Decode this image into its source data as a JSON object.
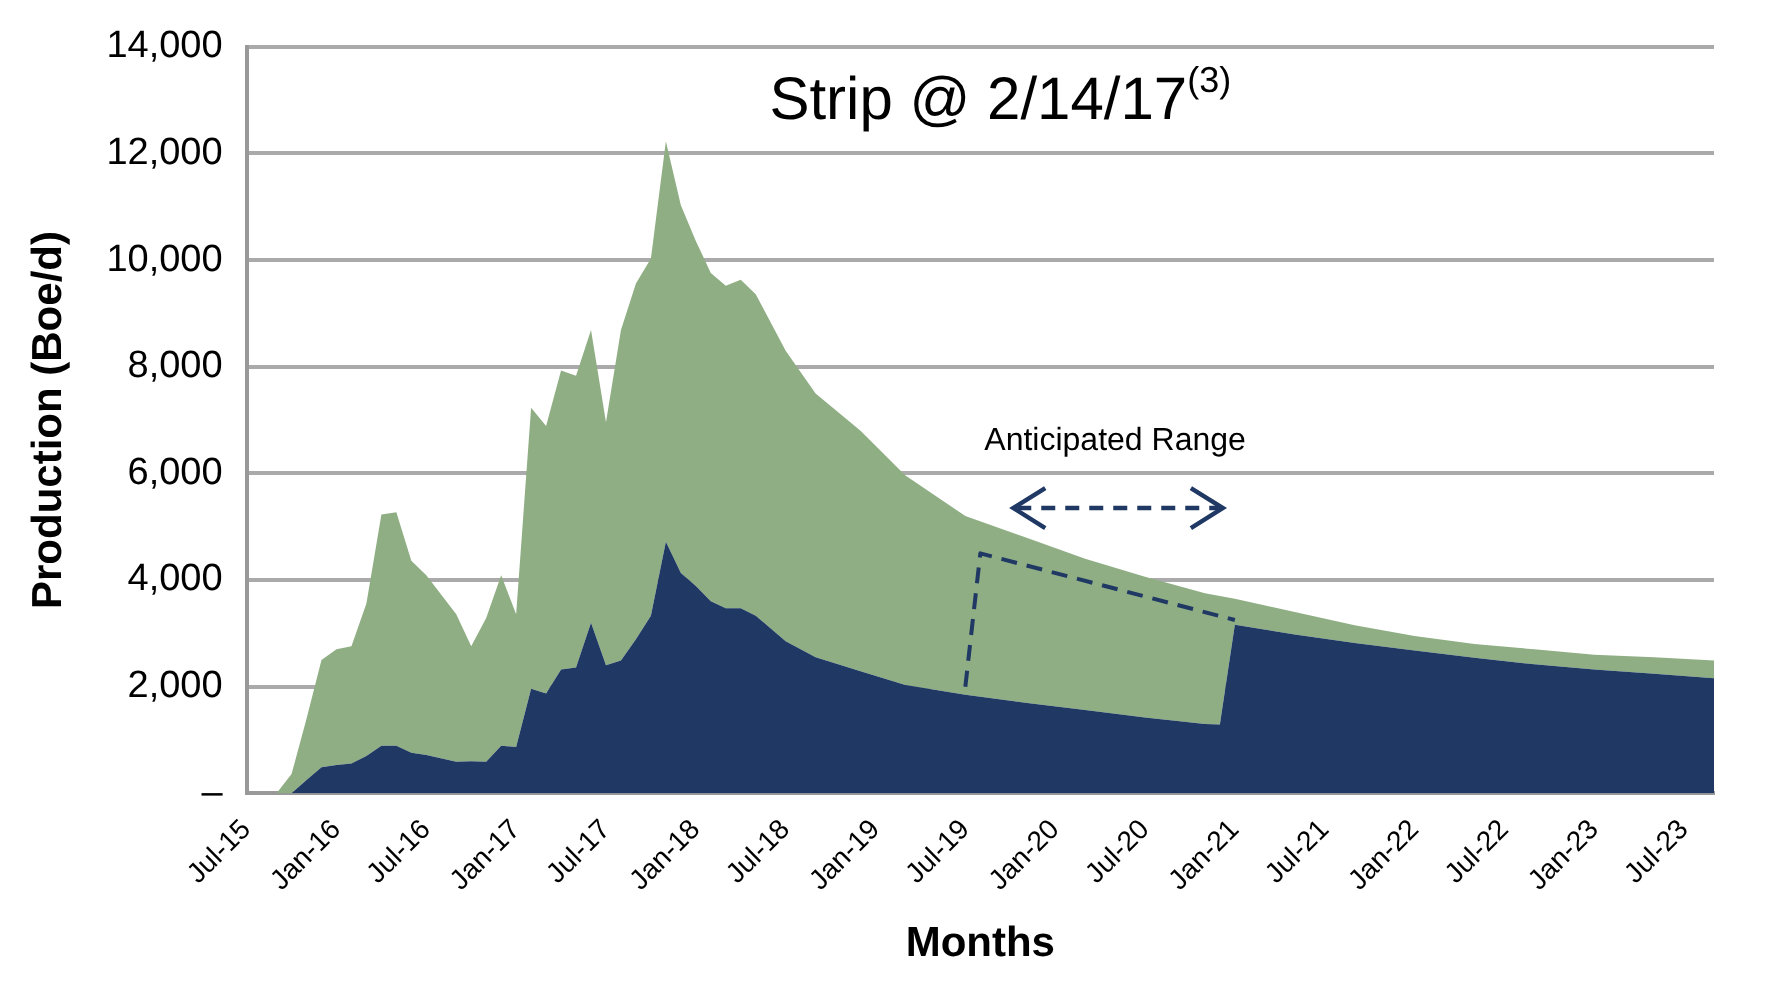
{
  "chart_data": {
    "type": "area",
    "title": "Strip @ 2/14/17$^{(3)}$",
    "xlabel": "Months",
    "ylabel": "Production (Boe/d)",
    "stacked": true,
    "legend": false,
    "grid": "y",
    "marker": "none",
    "annotations": [
      "Anticipated Range"
    ],
    "x": [
      "2015-09",
      "2015-10",
      "2015-11",
      "2015-12",
      "2016-01",
      "2016-02",
      "2016-03",
      "2016-04",
      "2016-05",
      "2016-06",
      "2016-07",
      "2016-09",
      "2016-10",
      "2016-11",
      "2016-12",
      "2017-01",
      "2017-02",
      "2017-03",
      "2017-04",
      "2017-05",
      "2017-06",
      "2017-07",
      "2017-08",
      "2017-09",
      "2017-10",
      "2017-11",
      "2017-12",
      "2018-01",
      "2018-02",
      "2018-03",
      "2018-04",
      "2018-05",
      "2018-07",
      "2018-09",
      "2018-12",
      "2019-03",
      "2019-07",
      "2019-11",
      "2020-03",
      "2020-07",
      "2020-11",
      "2020-12",
      "2021-01",
      "2021-05",
      "2021-09",
      "2022-01",
      "2022-05",
      "2022-09",
      "2023-01",
      "2023-05",
      "2023-09"
    ],
    "series": [
      {
        "color": "#1f3864",
        "values": [
          0,
          0,
          250,
          490,
          530,
          560,
          700,
          890,
          890,
          760,
          720,
          590,
          600,
          590,
          890,
          870,
          1960,
          1870,
          2320,
          2360,
          3200,
          2400,
          2490,
          2890,
          3330,
          4720,
          4130,
          3890,
          3600,
          3470,
          3470,
          3330,
          2850,
          2550,
          2290,
          2030,
          1850,
          1700,
          1560,
          1420,
          1300,
          1290,
          3160,
          2980,
          2820,
          2680,
          2540,
          2420,
          2320,
          2240,
          2160
        ]
      },
      {
        "color": "#8fae84",
        "values": [
          0,
          360,
          1150,
          2010,
          2170,
          2200,
          2860,
          4340,
          4380,
          3600,
          3370,
          2770,
          2160,
          2700,
          3200,
          2490,
          5270,
          5020,
          5610,
          5470,
          5490,
          4560,
          6200,
          6670,
          6700,
          7510,
          6900,
          6470,
          6160,
          6050,
          6160,
          6030,
          5450,
          4950,
          4510,
          3930,
          3350,
          3100,
          2840,
          2640,
          2450,
          2410,
          490,
          420,
          330,
          270,
          260,
          280,
          280,
          310,
          330
        ]
      },
      {
        "type": "line",
        "line_style": "dashed",
        "color": "#1f3864",
        "x": [
          "2019-07",
          "2019-08",
          "2021-01"
        ],
        "values": [
          2000,
          4500,
          3250
        ]
      }
    ],
    "xlim": [
      "2015-07",
      "2023-09"
    ],
    "xticks": [
      {
        "value": "2015-07",
        "label": "Jul-15"
      },
      {
        "value": "2016-01",
        "label": "Jan-16"
      },
      {
        "value": "2016-07",
        "label": "Jul-16"
      },
      {
        "value": "2017-01",
        "label": "Jan-17"
      },
      {
        "value": "2017-07",
        "label": "Jul-17"
      },
      {
        "value": "2018-01",
        "label": "Jan-18"
      },
      {
        "value": "2018-07",
        "label": "Jul-18"
      },
      {
        "value": "2019-01",
        "label": "Jan-19"
      },
      {
        "value": "2019-07",
        "label": "Jul-19"
      },
      {
        "value": "2020-01",
        "label": "Jan-20"
      },
      {
        "value": "2020-07",
        "label": "Jul-20"
      },
      {
        "value": "2021-01",
        "label": "Jan-21"
      },
      {
        "value": "2021-07",
        "label": "Jul-21"
      },
      {
        "value": "2022-01",
        "label": "Jan-22"
      },
      {
        "value": "2022-07",
        "label": "Jul-22"
      },
      {
        "value": "2023-01",
        "label": "Jan-23"
      },
      {
        "value": "2023-07",
        "label": "Jul-23"
      }
    ],
    "ylim": [
      0,
      14000
    ],
    "yticks": [
      {
        "value": 0,
        "label": "–"
      },
      {
        "value": 2000,
        "label": "2,000"
      },
      {
        "value": 4000,
        "label": "4,000"
      },
      {
        "value": 6000,
        "label": "6,000"
      },
      {
        "value": 8000,
        "label": "8,000"
      },
      {
        "value": 10000,
        "label": "10,000"
      },
      {
        "value": 12000,
        "label": "12,000"
      },
      {
        "value": 14000,
        "label": "14,000"
      }
    ]
  }
}
